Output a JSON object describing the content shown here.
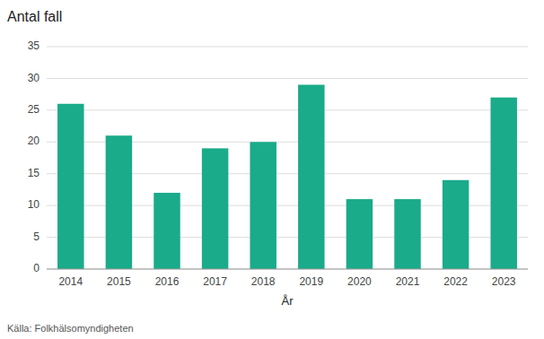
{
  "chart_data": {
    "type": "bar",
    "title": "Antal fall",
    "x_label": "År",
    "source": "Källa: Folkhälsomyndigheten",
    "categories": [
      "2014",
      "2015",
      "2016",
      "2017",
      "2018",
      "2019",
      "2020",
      "2021",
      "2022",
      "2023"
    ],
    "values": [
      26,
      21,
      12,
      19,
      20,
      29,
      11,
      11,
      14,
      27
    ],
    "color": "#1aab8a",
    "ylim": [
      0,
      35
    ],
    "yticks": [
      0,
      5,
      10,
      15,
      20,
      25,
      30,
      35
    ],
    "grid": true
  }
}
